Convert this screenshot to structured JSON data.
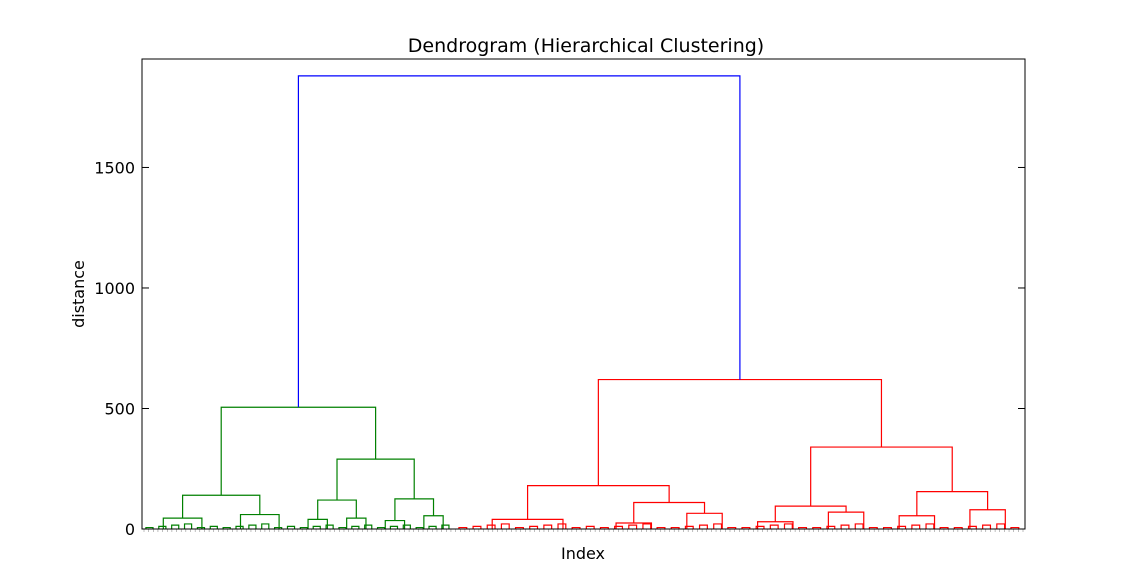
{
  "chart_data": {
    "type": "dendrogram",
    "title": "Dendrogram (Hierarchical Clustering)",
    "xlabel": "Index",
    "ylabel": "distance",
    "ylim": [
      0,
      1950
    ],
    "yticks": [
      0,
      500,
      1000,
      1500
    ],
    "grid": false,
    "legend": "none",
    "cluster_colors": {
      "green_cluster": "#008000",
      "red_cluster": "#ff0000",
      "root_link": "#0000ff"
    },
    "root_merge_distance": 1880,
    "clusters": [
      {
        "color": "#008000",
        "merge_distance": 505,
        "children": [
          {
            "merge_distance": 140,
            "children": [
              {
                "merge_distance": 45
              },
              {
                "merge_distance": 60
              }
            ]
          },
          {
            "merge_distance": 290,
            "children": [
              {
                "merge_distance": 120,
                "children": [
                  {
                    "merge_distance": 40
                  },
                  {
                    "merge_distance": 45
                  }
                ]
              },
              {
                "merge_distance": 125,
                "children": [
                  {
                    "merge_distance": 35
                  },
                  {
                    "merge_distance": 55
                  }
                ]
              }
            ]
          }
        ]
      },
      {
        "color": "#ff0000",
        "merge_distance": 620,
        "children": [
          {
            "merge_distance": 180,
            "children": [
              {
                "merge_distance": 40
              },
              {
                "merge_distance": 110,
                "children": [
                  {
                    "merge_distance": 25
                  },
                  {
                    "merge_distance": 65
                  }
                ]
              }
            ]
          },
          {
            "merge_distance": 340,
            "children": [
              {
                "merge_distance": 95,
                "children": [
                  {
                    "merge_distance": 30
                  },
                  {
                    "merge_distance": 70
                  }
                ]
              },
              {
                "merge_distance": 155,
                "children": [
                  {
                    "merge_distance": 55
                  },
                  {
                    "merge_distance": 80
                  }
                ]
              }
            ]
          }
        ]
      }
    ]
  }
}
